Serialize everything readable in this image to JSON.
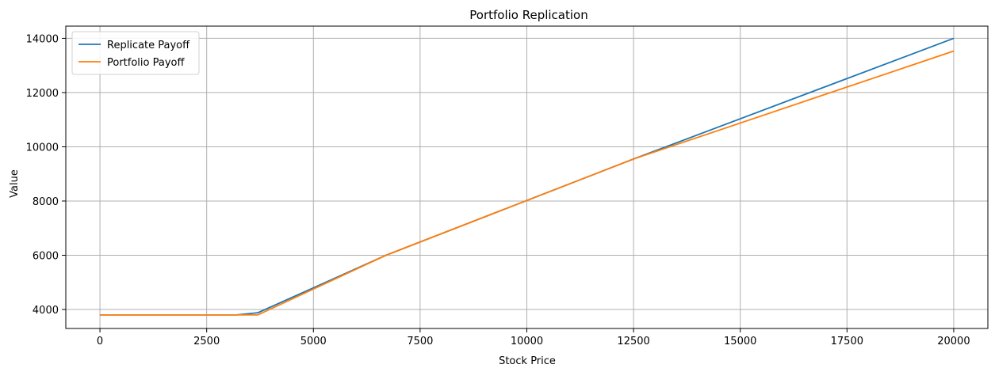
{
  "chart_data": {
    "type": "line",
    "title": "Portfolio Replication",
    "xlabel": "Stock Price",
    "ylabel": "Value",
    "xlim": [
      -800,
      20800
    ],
    "ylim": [
      3300,
      14450
    ],
    "xticks": [
      0,
      2500,
      5000,
      7500,
      10000,
      12500,
      15000,
      17500,
      20000
    ],
    "yticks": [
      4000,
      6000,
      8000,
      10000,
      12000,
      14000
    ],
    "grid": true,
    "legend_position": "top-left",
    "series": [
      {
        "name": "Replicate Payoff",
        "color": "#1f77b4",
        "x": [
          0,
          3200,
          3700,
          6700,
          12500,
          20000
        ],
        "y": [
          3800,
          3800,
          3880,
          6000,
          9550,
          14000
        ]
      },
      {
        "name": "Portfolio Payoff",
        "color": "#ff7f0e",
        "x": [
          0,
          3700,
          6700,
          12500,
          20000
        ],
        "y": [
          3800,
          3800,
          6000,
          9550,
          13530
        ]
      }
    ]
  }
}
